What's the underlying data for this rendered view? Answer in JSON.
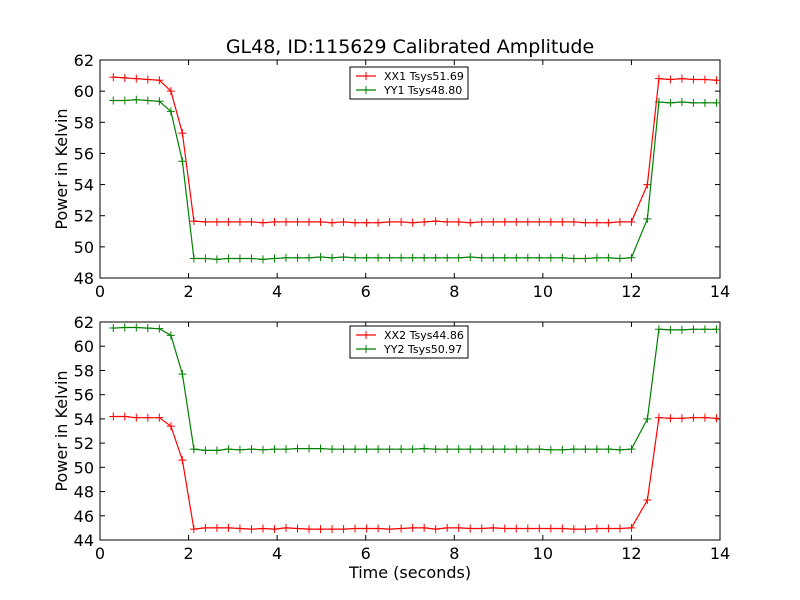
{
  "title": "GL48, ID:115629 Calibrated Amplitude",
  "chart_data": [
    {
      "type": "line",
      "ylabel": "Power in Kelvin",
      "xlabel": "",
      "xlim": [
        0,
        14
      ],
      "ylim": [
        48,
        62
      ],
      "xticks": [
        "0",
        "2",
        "4",
        "6",
        "8",
        "10",
        "12",
        "14"
      ],
      "yticks": [
        "48",
        "50",
        "52",
        "54",
        "56",
        "58",
        "60",
        "62"
      ],
      "legend_position": "top-center",
      "x": [
        0.3,
        0.56,
        0.82,
        1.08,
        1.34,
        1.6,
        1.86,
        2.12,
        2.38,
        2.64,
        2.9,
        3.16,
        3.42,
        3.68,
        3.94,
        4.2,
        4.46,
        4.72,
        4.98,
        5.24,
        5.5,
        5.76,
        6.02,
        6.28,
        6.54,
        6.8,
        7.06,
        7.32,
        7.58,
        7.84,
        8.1,
        8.36,
        8.62,
        8.88,
        9.14,
        9.4,
        9.66,
        9.92,
        10.18,
        10.44,
        10.7,
        10.96,
        11.22,
        11.48,
        11.74,
        12.0,
        12.36,
        12.62,
        12.88,
        13.14,
        13.4,
        13.66,
        13.92
      ],
      "series": [
        {
          "name": "XX1 Tsys51.69",
          "color": "#ff0000",
          "values": [
            60.9,
            60.85,
            60.8,
            60.75,
            60.7,
            60.0,
            57.3,
            51.65,
            51.6,
            51.6,
            51.6,
            51.6,
            51.6,
            51.55,
            51.6,
            51.6,
            51.6,
            51.6,
            51.6,
            51.55,
            51.6,
            51.55,
            51.55,
            51.55,
            51.6,
            51.6,
            51.55,
            51.6,
            51.65,
            51.6,
            51.6,
            51.55,
            51.6,
            51.6,
            51.6,
            51.6,
            51.6,
            51.6,
            51.6,
            51.6,
            51.6,
            51.55,
            51.55,
            51.55,
            51.6,
            51.6,
            54.0,
            60.8,
            60.75,
            60.8,
            60.75,
            60.75,
            60.7
          ]
        },
        {
          "name": "YY1 Tsys48.80",
          "color": "#008000",
          "values": [
            59.4,
            59.4,
            59.45,
            59.4,
            59.35,
            58.7,
            55.5,
            49.25,
            49.25,
            49.2,
            49.25,
            49.25,
            49.25,
            49.2,
            49.25,
            49.3,
            49.3,
            49.3,
            49.35,
            49.3,
            49.35,
            49.3,
            49.3,
            49.3,
            49.3,
            49.3,
            49.3,
            49.3,
            49.3,
            49.3,
            49.3,
            49.35,
            49.3,
            49.3,
            49.3,
            49.3,
            49.3,
            49.3,
            49.3,
            49.3,
            49.25,
            49.25,
            49.3,
            49.3,
            49.25,
            49.3,
            51.8,
            59.3,
            59.25,
            59.3,
            59.25,
            59.25,
            59.25
          ]
        }
      ]
    },
    {
      "type": "line",
      "ylabel": "Power in Kelvin",
      "xlabel": "Time (seconds)",
      "xlim": [
        0,
        14
      ],
      "ylim": [
        44,
        62
      ],
      "xticks": [
        "0",
        "2",
        "4",
        "6",
        "8",
        "10",
        "12",
        "14"
      ],
      "yticks": [
        "44",
        "46",
        "48",
        "50",
        "52",
        "54",
        "56",
        "58",
        "60",
        "62"
      ],
      "legend_position": "top-center",
      "x": [
        0.3,
        0.56,
        0.82,
        1.08,
        1.34,
        1.6,
        1.86,
        2.12,
        2.38,
        2.64,
        2.9,
        3.16,
        3.42,
        3.68,
        3.94,
        4.2,
        4.46,
        4.72,
        4.98,
        5.24,
        5.5,
        5.76,
        6.02,
        6.28,
        6.54,
        6.8,
        7.06,
        7.32,
        7.58,
        7.84,
        8.1,
        8.36,
        8.62,
        8.88,
        9.14,
        9.4,
        9.66,
        9.92,
        10.18,
        10.44,
        10.7,
        10.96,
        11.22,
        11.48,
        11.74,
        12.0,
        12.36,
        12.62,
        12.88,
        13.14,
        13.4,
        13.66,
        13.92
      ],
      "series": [
        {
          "name": "XX2 Tsys44.86",
          "color": "#ff0000",
          "values": [
            54.2,
            54.2,
            54.1,
            54.1,
            54.1,
            53.4,
            50.6,
            44.9,
            45.0,
            45.0,
            45.0,
            44.95,
            44.9,
            44.95,
            44.9,
            45.0,
            44.95,
            44.9,
            44.9,
            44.9,
            44.9,
            44.95,
            44.95,
            44.95,
            44.9,
            44.95,
            45.0,
            45.0,
            44.9,
            45.0,
            45.0,
            44.95,
            44.95,
            45.0,
            44.95,
            44.95,
            44.95,
            44.95,
            44.95,
            44.95,
            44.9,
            44.9,
            44.95,
            44.95,
            44.95,
            45.0,
            47.3,
            54.1,
            54.05,
            54.05,
            54.1,
            54.1,
            54.05
          ]
        },
        {
          "name": "YY2 Tsys50.97",
          "color": "#008000",
          "values": [
            61.5,
            61.55,
            61.55,
            61.5,
            61.45,
            60.9,
            57.7,
            51.5,
            51.4,
            51.4,
            51.5,
            51.45,
            51.5,
            51.45,
            51.5,
            51.5,
            51.55,
            51.55,
            51.55,
            51.5,
            51.5,
            51.5,
            51.5,
            51.5,
            51.5,
            51.5,
            51.5,
            51.55,
            51.5,
            51.5,
            51.5,
            51.5,
            51.5,
            51.5,
            51.5,
            51.5,
            51.5,
            51.5,
            51.45,
            51.45,
            51.5,
            51.5,
            51.5,
            51.5,
            51.45,
            51.5,
            54.0,
            61.4,
            61.35,
            61.35,
            61.4,
            61.4,
            61.4
          ]
        }
      ]
    }
  ]
}
